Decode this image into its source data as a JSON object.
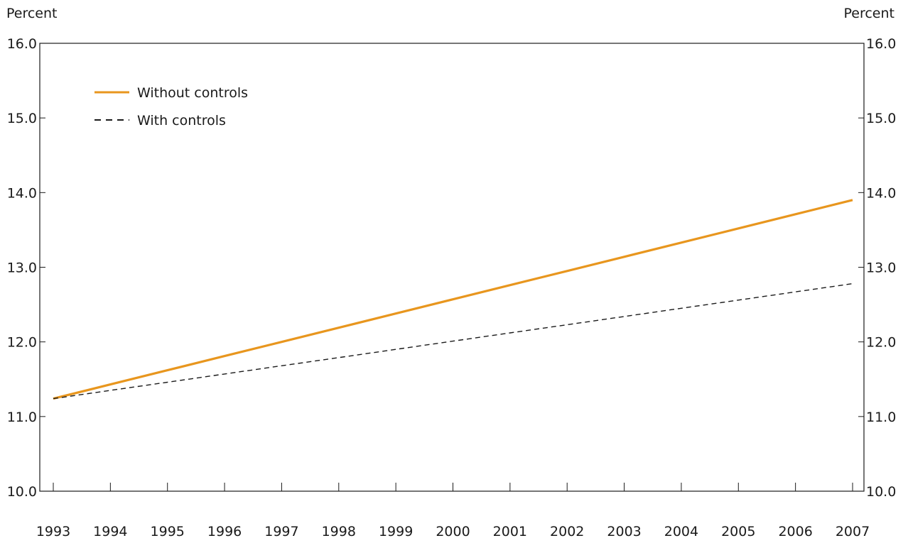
{
  "chart_data": {
    "type": "line",
    "y_unit_left": "Percent",
    "y_unit_right": "Percent",
    "x": [
      1993,
      1994,
      1995,
      1996,
      1997,
      1998,
      1999,
      2000,
      2001,
      2002,
      2003,
      2004,
      2005,
      2006,
      2007
    ],
    "x_tick_labels": [
      "1993",
      "1994",
      "1995",
      "1996",
      "1997",
      "1998",
      "1999",
      "2000",
      "2001",
      "2002",
      "2003",
      "2004",
      "2005",
      "2006",
      "2007"
    ],
    "ylim": [
      10.0,
      16.0
    ],
    "y_ticks": [
      10.0,
      11.0,
      12.0,
      13.0,
      14.0,
      15.0,
      16.0
    ],
    "y_tick_labels": [
      "10.0",
      "11.0",
      "12.0",
      "13.0",
      "14.0",
      "15.0",
      "16.0"
    ],
    "grid": false,
    "legend_position": "top-left",
    "series": [
      {
        "name": "Without controls",
        "color": "#E8961E",
        "style": "solid",
        "values": [
          11.24,
          11.43,
          11.62,
          11.81,
          12.0,
          12.19,
          12.38,
          12.57,
          12.76,
          12.95,
          13.14,
          13.33,
          13.52,
          13.71,
          13.9
        ]
      },
      {
        "name": "With controls",
        "color": "#1a1a1a",
        "style": "dashed",
        "values": [
          11.24,
          11.35,
          11.46,
          11.57,
          11.68,
          11.79,
          11.9,
          12.01,
          12.12,
          12.23,
          12.34,
          12.45,
          12.56,
          12.67,
          12.78
        ]
      }
    ]
  }
}
